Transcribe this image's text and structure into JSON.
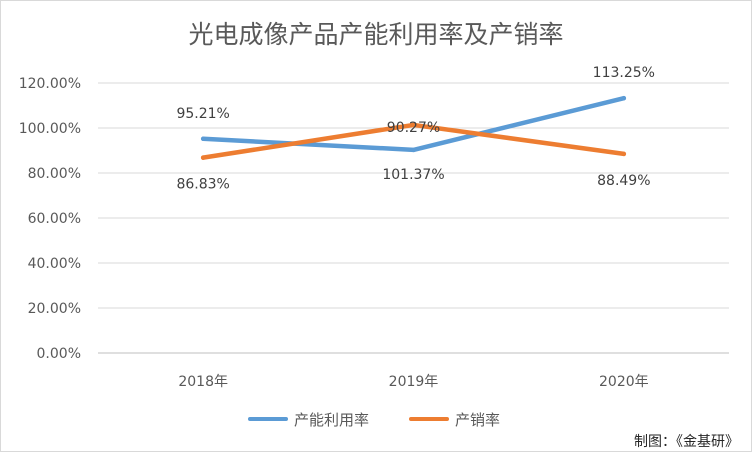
{
  "chart_data": {
    "type": "line",
    "title": "光电成像产品产能利用率及产销率",
    "categories": [
      "2018年",
      "2019年",
      "2020年"
    ],
    "y_ticks": [
      "0.00%",
      "20.00%",
      "40.00%",
      "60.00%",
      "80.00%",
      "100.00%",
      "120.00%"
    ],
    "ylim": [
      0,
      120
    ],
    "grid": true,
    "legend_position": "bottom",
    "series": [
      {
        "name": "产能利用率",
        "color": "#5B9BD5",
        "values": [
          95.21,
          90.27,
          113.25
        ],
        "labels": [
          "95.21%",
          "90.27%",
          "113.25%"
        ]
      },
      {
        "name": "产销率",
        "color": "#ED7D31",
        "values": [
          86.83,
          101.37,
          88.49
        ],
        "labels": [
          "86.83%",
          "101.37%",
          "88.49%"
        ]
      }
    ]
  },
  "source_note": "制图：《金基研》"
}
